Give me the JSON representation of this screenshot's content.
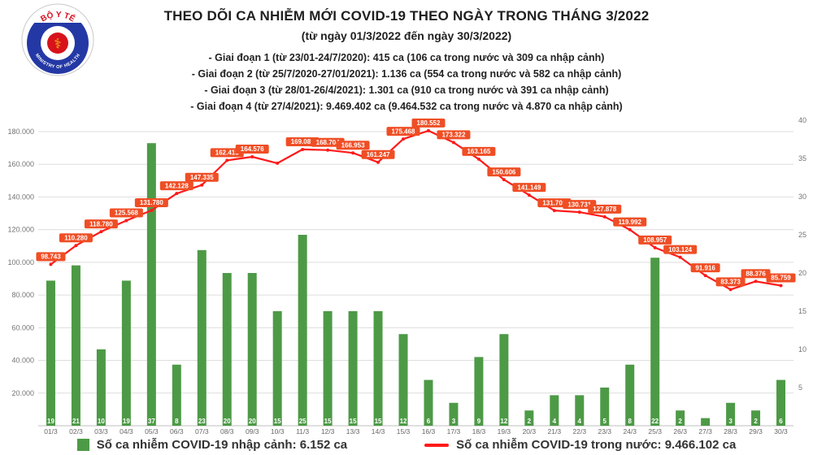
{
  "logo": {
    "top_text": "BỘ Y TẾ",
    "bottom_text": "MINISTRY OF HEALTH"
  },
  "header": {
    "title": "THEO DÕI CA NHIỄM MỚI COVID-19 THEO NGÀY TRONG THÁNG 3/2022",
    "subtitle": "(từ ngày 01/3/2022 đến ngày 30/3/2022)",
    "phases": [
      "- Giai đoạn 1 (từ 23/01-24/7/2020): 415 ca (106 ca trong nước và 309 ca nhập cảnh)",
      "- Giai đoạn 2 (từ 25/7/2020-27/01/2021): 1.136 ca (554 ca trong nước và 582 ca nhập cảnh)",
      "- Giai đoạn 3 (từ 28/01-26/4/2021): 1.301 ca (910 ca trong nước và 391 ca nhập cảnh)",
      "- Giai đoạn 4 (từ 27/4/2021): 9.469.402 ca (9.464.532 ca trong nước và 4.870 ca nhập cảnh)"
    ]
  },
  "legend": [
    {
      "label": "Số ca nhiễm COVID-19 nhập cảnh: 6.152 ca",
      "color": "#4D9A46",
      "marker": "square"
    },
    {
      "label": "Số ca nhiễm COVID-19 trong nước: 9.466.102 ca",
      "color": "#FE1A1A",
      "marker": "line"
    }
  ],
  "chart_data": {
    "type": "combo",
    "title": "THEO DÕI CA NHIỄM MỚI COVID-19 THEO NGÀY TRONG THÁNG 3/2022",
    "subtitle": "(từ ngày 01/3/2022 đến ngày 30/3/2022)",
    "grid": true,
    "legend_position": "bottom",
    "categories": [
      "01/3",
      "02/3",
      "03/3",
      "04/3",
      "05/3",
      "06/3",
      "07/3",
      "08/3",
      "09/3",
      "10/3",
      "11/3",
      "12/3",
      "13/3",
      "14/3",
      "15/3",
      "16/3",
      "17/3",
      "18/3",
      "19/3",
      "20/3",
      "21/3",
      "22/3",
      "23/3",
      "24/3",
      "25/3",
      "26/3",
      "27/3",
      "28/3",
      "29/3",
      "30/3"
    ],
    "left_axis": {
      "min": 0,
      "max": 180000,
      "tick_step": 20000,
      "tick_labels": [
        "20.000",
        "40.000",
        "60.000",
        "80.000",
        "100.000",
        "120.000",
        "140.000",
        "160.000",
        "180.000"
      ]
    },
    "right_axis": {
      "min": 0,
      "max": 40,
      "tick_step": 5,
      "tick_labels": [
        "5",
        "10",
        "15",
        "20",
        "25",
        "30",
        "35",
        "40"
      ]
    },
    "series": [
      {
        "name": "Số ca nhiễm COVID-19 nhập cảnh",
        "type": "bar",
        "axis": "right",
        "color": "#4D9A46",
        "values": [
          19,
          21,
          10,
          19,
          37,
          8,
          23,
          20,
          20,
          15,
          25,
          15,
          15,
          15,
          12,
          6,
          3,
          9,
          12,
          2,
          4,
          4,
          5,
          8,
          22,
          2,
          1,
          3,
          2,
          6
        ],
        "bar_labels": [
          "19",
          "21",
          "10",
          "19",
          "37",
          "8",
          "23",
          "20",
          "20",
          "15",
          "25",
          "15",
          "15",
          "15",
          "12",
          "6",
          "3",
          "9",
          "12",
          "2",
          "4",
          "4",
          "5",
          "8",
          "22",
          "2",
          "",
          "3",
          "2",
          "6"
        ]
      },
      {
        "name": "Số ca nhiễm COVID-19 trong nước",
        "type": "line",
        "axis": "left",
        "color": "#FE1A1A",
        "label_bg": "#EF4E25",
        "values": [
          98743,
          110280,
          118780,
          125568,
          131780,
          142128,
          147335,
          162415,
          164576,
          160661,
          169089,
          168704,
          166953,
          161247,
          175468,
          180552,
          173322,
          163165,
          150606,
          141149,
          131709,
          130731,
          127878,
          119992,
          108957,
          103124,
          91916,
          83373,
          88376,
          85759
        ],
        "point_labels": [
          "98.743",
          "110.280",
          "118.780",
          "125.568",
          "131.780",
          "142.128",
          "147.335",
          "162.415",
          "164.576",
          "",
          "169.089",
          "168.704",
          "166.953",
          "161.247",
          "175.468",
          "180.552",
          "173.322",
          "163.165",
          "150.606",
          "141.149",
          "131.709",
          "130.731",
          "127.878",
          "119.992",
          "108.957",
          "103.124",
          "91.916",
          "83.373",
          "88.376",
          "85.759"
        ]
      }
    ]
  }
}
